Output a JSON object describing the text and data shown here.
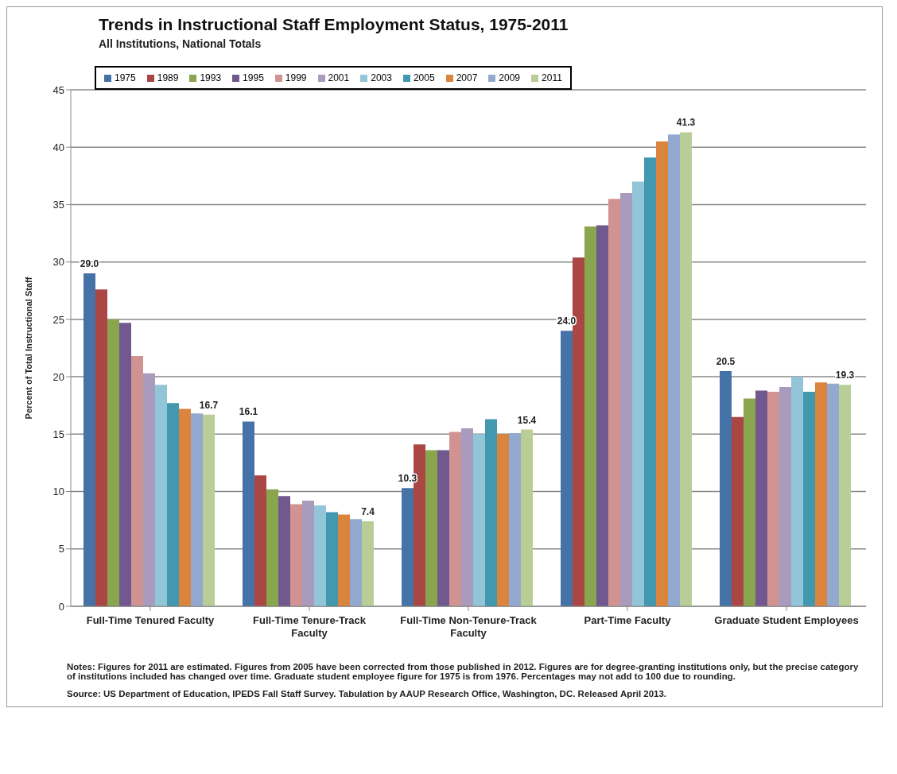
{
  "chart_data": {
    "type": "bar",
    "title": "Trends in Instructional Staff Employment Status, 1975-2011",
    "subtitle": "All Institutions, National Totals",
    "ylabel": "Percent of Total Instructional Staff",
    "categories": [
      "Full-Time Tenured Faculty",
      "Full-Time Tenure-Track Faculty",
      "Full-Time Non-Tenure-Track Faculty",
      "Part-Time Faculty",
      "Graduate Student Employees"
    ],
    "series": [
      {
        "name": "1975",
        "color": "#4572a7",
        "values": [
          29.0,
          16.1,
          10.3,
          24.0,
          20.5
        ],
        "value_labels": [
          "29.0",
          "16.1",
          "10.3",
          "24.0",
          "20.5"
        ]
      },
      {
        "name": "1989",
        "color": "#aa4643",
        "values": [
          27.6,
          11.4,
          14.1,
          30.4,
          16.5
        ]
      },
      {
        "name": "1993",
        "color": "#89a54e",
        "values": [
          25.0,
          10.2,
          13.6,
          33.1,
          18.1
        ]
      },
      {
        "name": "1995",
        "color": "#71588f",
        "values": [
          24.7,
          9.6,
          13.6,
          33.2,
          18.8
        ]
      },
      {
        "name": "1999",
        "color": "#d09392",
        "values": [
          21.8,
          8.9,
          15.2,
          35.5,
          18.7
        ]
      },
      {
        "name": "2001",
        "color": "#a99bbd",
        "values": [
          20.3,
          9.2,
          15.5,
          36.0,
          19.1
        ]
      },
      {
        "name": "2003",
        "color": "#92c5d7",
        "values": [
          19.3,
          8.8,
          15.0,
          37.0,
          20.0
        ]
      },
      {
        "name": "2005",
        "color": "#4198af",
        "values": [
          17.7,
          8.2,
          16.3,
          39.1,
          18.7
        ]
      },
      {
        "name": "2007",
        "color": "#db843d",
        "values": [
          17.2,
          8.0,
          15.0,
          40.5,
          19.5
        ]
      },
      {
        "name": "2009",
        "color": "#93a9cf",
        "values": [
          16.8,
          7.6,
          15.1,
          41.1,
          19.4
        ]
      },
      {
        "name": "2011",
        "color": "#b9cd96",
        "values": [
          16.7,
          7.4,
          15.4,
          41.3,
          19.3
        ],
        "value_labels": [
          "16.7",
          "7.4",
          "15.4",
          "41.3",
          "19.3"
        ]
      }
    ],
    "ylim": [
      0,
      45
    ],
    "yticks": [
      0,
      5,
      10,
      15,
      20,
      25,
      30,
      35,
      40,
      45
    ],
    "grid": "y",
    "legend": "top left",
    "annotations": [
      "Notes: Figures for 2011 are estimated. Figures from 2005 have been corrected from those published in 2012. Figures are for degree-granting institutions only, but the precise category of institutions included has changed over time. Graduate student employee figure for 1975 is from 1976. Percentages may not add to 100 due to rounding.",
      "Source: US Department of Education, IPEDS Fall Staff Survey. Tabulation by AAUP Research Office, Washington, DC. Released April 2013."
    ]
  }
}
